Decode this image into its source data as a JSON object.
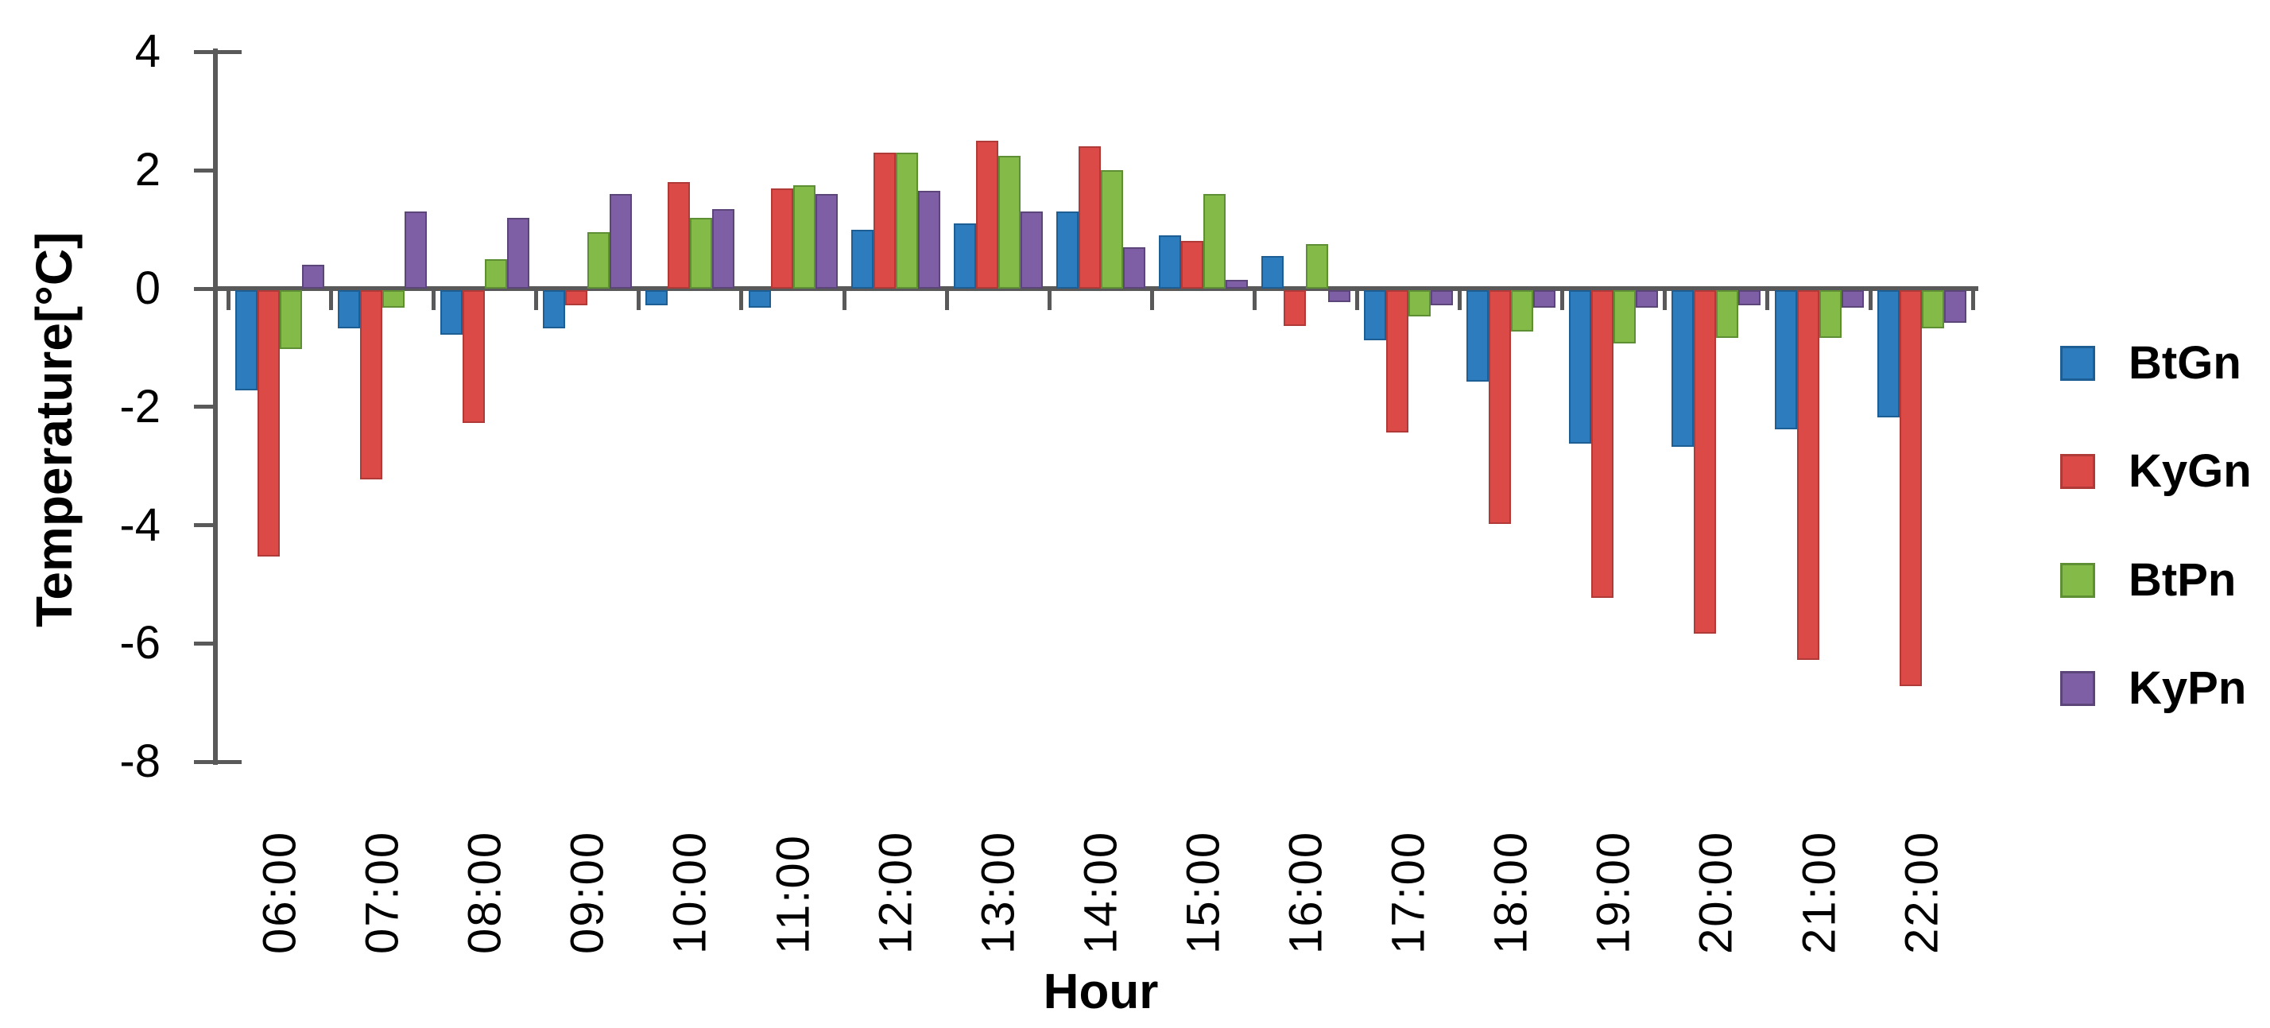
{
  "chart_data": {
    "type": "bar",
    "title": "",
    "xlabel": "Hour",
    "ylabel": "Temperature[°C]",
    "categories": [
      "06:00",
      "07:00",
      "08:00",
      "09:00",
      "10:00",
      "11:00",
      "12:00",
      "13:00",
      "14:00",
      "15:00",
      "16:00",
      "17:00",
      "18:00",
      "19:00",
      "20:00",
      "21:00",
      "22:00"
    ],
    "series": [
      {
        "name": "BtGn",
        "color": "#2C7CBE",
        "border": "#1D5E94",
        "values": [
          -1.7,
          -0.65,
          -0.75,
          -0.65,
          -0.25,
          -0.3,
          1.0,
          1.1,
          1.3,
          0.9,
          0.55,
          -0.85,
          -1.55,
          -2.6,
          -2.65,
          -2.35,
          -2.15
        ]
      },
      {
        "name": "KyGn",
        "color": "#DB4A46",
        "border": "#B03A38",
        "values": [
          -4.5,
          -3.2,
          -2.25,
          -0.25,
          1.8,
          1.7,
          2.3,
          2.5,
          2.4,
          0.8,
          -0.6,
          -2.4,
          -3.95,
          -5.2,
          -5.8,
          -6.25,
          -6.7
        ]
      },
      {
        "name": "BtPn",
        "color": "#84BA48",
        "border": "#5F8F35",
        "values": [
          -1.0,
          -0.3,
          0.5,
          0.95,
          1.2,
          1.75,
          2.3,
          2.25,
          2.0,
          1.6,
          0.75,
          -0.45,
          -0.7,
          -0.9,
          -0.8,
          -0.8,
          -0.65
        ]
      },
      {
        "name": "KyPn",
        "color": "#7E5FA5",
        "border": "#5C4579",
        "values": [
          0.4,
          1.3,
          1.2,
          1.6,
          1.35,
          1.6,
          1.65,
          1.3,
          0.7,
          0.15,
          -0.2,
          -0.25,
          -0.3,
          -0.3,
          -0.25,
          -0.3,
          -0.55
        ]
      }
    ],
    "ylim": [
      -8,
      4
    ],
    "yticks": [
      4,
      2,
      0,
      -2,
      -4,
      -6,
      -8
    ],
    "grid": false,
    "legend_position": "right",
    "axis_color": "#595959",
    "text_color": "#000000"
  }
}
